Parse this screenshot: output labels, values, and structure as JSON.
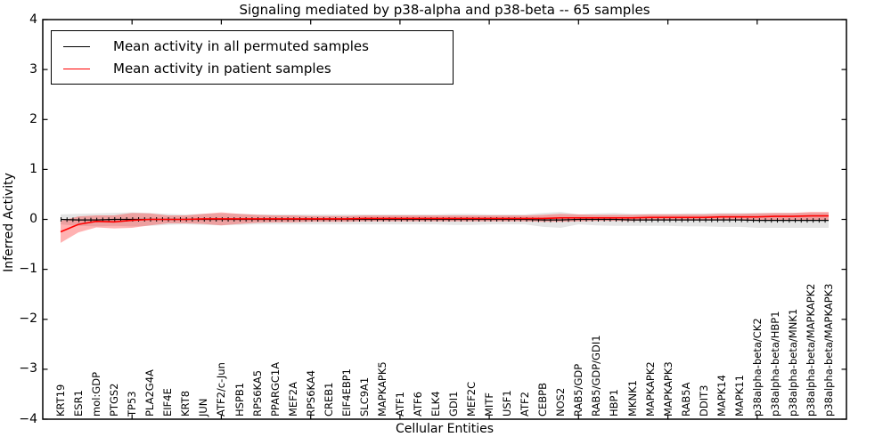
{
  "chart_data": {
    "type": "line",
    "title": "Signaling mediated by p38-alpha and p38-beta -- 65 samples",
    "xlabel": "Cellular Entities",
    "ylabel": "Inferred Activity",
    "ylim": [
      -4,
      4
    ],
    "ytick_values": [
      4,
      3,
      2,
      1,
      0,
      -1,
      -2,
      -3,
      -4
    ],
    "ytick_labels": [
      "4",
      "3",
      "2",
      "1",
      "0",
      "−1",
      "−2",
      "−3",
      "−4"
    ],
    "xtick_minor_indices": [
      4,
      9,
      14,
      19,
      24,
      29,
      34,
      39
    ],
    "grid": false,
    "legend_position": "upper left",
    "categories": [
      "KRT19",
      "ESR1",
      "mol:GDP",
      "PTGS2",
      "TP53",
      "PLA2G4A",
      "EIF4E",
      "KRT8",
      "JUN",
      "ATF2/c-Jun",
      "HSPB1",
      "RPS6KA5",
      "PPARGC1A",
      "MEF2A",
      "RPS6KA4",
      "CREB1",
      "EIF4EBP1",
      "SLC9A1",
      "MAPKAPK5",
      "ATF1",
      "ATF6",
      "ELK4",
      "GDI1",
      "MEF2C",
      "MITF",
      "USF1",
      "ATF2",
      "CEBPB",
      "NOS2",
      "RAB5/GDP",
      "RAB5/GDP/GDI1",
      "HBP1",
      "MKNK1",
      "MAPKAPK2",
      "MAPKAPK3",
      "RAB5A",
      "DDIT3",
      "MAPK14",
      "MAPK11",
      "p38alpha-beta/CK2",
      "p38alpha-beta/HBP1",
      "p38alpha-beta/MNK1",
      "p38alpha-beta/MAPKAPK2",
      "p38alpha-beta/MAPKAPK3"
    ],
    "series": [
      {
        "name": "Mean activity in all permuted samples",
        "color": "#000000",
        "band_color": "rgba(0,0,0,0.10)",
        "marker": "tick",
        "values": [
          0,
          -0.01,
          -0.01,
          0,
          0,
          0,
          0,
          0,
          0,
          0,
          0,
          0,
          0,
          0,
          0,
          0,
          0,
          0,
          0,
          0,
          0,
          0,
          0,
          0,
          0,
          0,
          0,
          -0.01,
          -0.01,
          0,
          0,
          0,
          -0.01,
          -0.01,
          -0.01,
          -0.01,
          -0.01,
          -0.01,
          -0.01,
          -0.02,
          -0.02,
          -0.02,
          -0.02,
          -0.02
        ],
        "band_halfwidth": [
          0.1,
          0.12,
          0.13,
          0.13,
          0.14,
          0.13,
          0.11,
          0.1,
          0.11,
          0.12,
          0.11,
          0.1,
          0.1,
          0.1,
          0.1,
          0.1,
          0.1,
          0.1,
          0.1,
          0.1,
          0.1,
          0.1,
          0.11,
          0.11,
          0.1,
          0.1,
          0.1,
          0.14,
          0.16,
          0.1,
          0.12,
          0.13,
          0.12,
          0.12,
          0.12,
          0.13,
          0.13,
          0.14,
          0.14,
          0.15,
          0.15,
          0.15,
          0.15,
          0.15
        ]
      },
      {
        "name": "Mean activity in patient samples",
        "color": "#ff0000",
        "band_color": "rgba(255,0,0,0.30)",
        "marker": "none",
        "values": [
          -0.25,
          -0.1,
          -0.04,
          -0.05,
          -0.02,
          0,
          0,
          0,
          0.01,
          0.01,
          0.01,
          0.01,
          0.01,
          0.01,
          0.01,
          0.01,
          0.01,
          0.02,
          0.02,
          0.02,
          0.02,
          0.02,
          0.02,
          0.02,
          0.02,
          0.02,
          0.02,
          0.02,
          0.03,
          0.03,
          0.03,
          0.03,
          0.03,
          0.04,
          0.04,
          0.04,
          0.04,
          0.05,
          0.05,
          0.05,
          0.06,
          0.06,
          0.07,
          0.07
        ],
        "band_halfwidth": [
          0.22,
          0.16,
          0.12,
          0.13,
          0.15,
          0.12,
          0.08,
          0.08,
          0.1,
          0.13,
          0.1,
          0.08,
          0.07,
          0.07,
          0.06,
          0.06,
          0.06,
          0.06,
          0.06,
          0.06,
          0.06,
          0.06,
          0.06,
          0.06,
          0.06,
          0.06,
          0.06,
          0.07,
          0.08,
          0.07,
          0.06,
          0.06,
          0.06,
          0.06,
          0.06,
          0.06,
          0.06,
          0.06,
          0.06,
          0.07,
          0.07,
          0.07,
          0.08,
          0.08
        ]
      }
    ]
  }
}
